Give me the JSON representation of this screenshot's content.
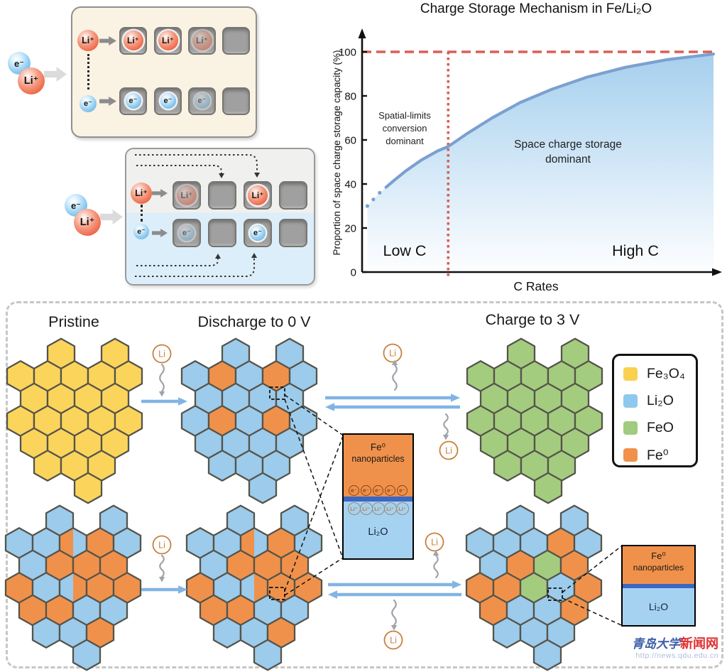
{
  "schematic": {
    "li_ion": "Li⁺",
    "electron": "e⁻",
    "panel1": {
      "li_cells": [
        "full",
        "full",
        "faded",
        "empty"
      ],
      "e_cells": [
        "full",
        "full",
        "faded",
        "empty"
      ]
    },
    "panel2": {
      "li_cells": [
        "faded",
        "empty",
        "full",
        "empty"
      ],
      "e_cells": [
        "faded",
        "empty",
        "full",
        "empty"
      ]
    }
  },
  "chart_data": {
    "type": "area",
    "title": "Charge Storage Mechanism in Fe/Li₂O",
    "xlabel": "C Rates",
    "ylabel": "Proportion of space charge storage capacity (%)",
    "x_range_labels": {
      "low": "Low C",
      "high": "High C"
    },
    "yticks": [
      0,
      20,
      40,
      60,
      80,
      100
    ],
    "ylim": [
      0,
      105
    ],
    "grid": false,
    "series": [
      {
        "name": "proportion of space charge storage",
        "x": [
          0.015,
          0.032,
          0.05,
          0.068,
          0.09,
          0.125,
          0.17,
          0.215,
          0.245,
          0.3,
          0.37,
          0.45,
          0.54,
          0.64,
          0.75,
          0.87,
          1.0
        ],
        "y": [
          30,
          33,
          36,
          38.5,
          41.5,
          46,
          51,
          55,
          57,
          63,
          70,
          77,
          83,
          88.5,
          93,
          96.5,
          99
        ],
        "dotted_prefix_points": 3
      }
    ],
    "reference_lines": [
      {
        "type": "horizontal",
        "value": 100,
        "style": "dashed",
        "color": "#D95F57"
      },
      {
        "type": "vertical",
        "x_fraction": 0.245,
        "style": "dotted",
        "color": "#D95F57"
      }
    ],
    "annotations": [
      {
        "id": "spatial",
        "lines": [
          "Spatial-limits",
          "conversion",
          "dominant"
        ]
      },
      {
        "id": "space-charge",
        "lines": [
          "Space charge storage",
          "dominant"
        ]
      }
    ],
    "colors": {
      "curve": "#7CA0CF",
      "fill_top": "#9ECBEC",
      "fill_mid": "#C8E2F5",
      "fill_bottom": "#FDFEFF"
    }
  },
  "bottom_panel": {
    "labels": {
      "pristine": "Pristine",
      "discharge": "Discharge to 0 V",
      "charge": "Charge to 3 V"
    },
    "li_label": "Li",
    "legend": [
      {
        "label": "Fe₃O₄",
        "color": "#FAD14E"
      },
      {
        "label": "Li₂O",
        "color": "#8FC8EF"
      },
      {
        "label": "FeO",
        "color": "#A1CB7F"
      },
      {
        "label": "Fe⁰",
        "color": "#F0914B"
      }
    ],
    "materials": {
      "Y": "#FBD45C",
      "B": "#9CCBEB",
      "O": "#F0914B",
      "G": "#A4CC7F"
    },
    "clusters": {
      "pristine_top": {
        "cells": [
          [
            "Y",
            "Y"
          ],
          [
            "Y",
            "Y",
            "Y",
            "Y",
            "Y"
          ],
          [
            "Y",
            "Y",
            "Y",
            "Y"
          ],
          [
            "Y",
            "Y",
            "Y",
            "Y",
            "Y"
          ],
          [
            "Y",
            "Y",
            "Y",
            "Y"
          ],
          [
            "Y",
            "Y",
            "Y"
          ],
          [
            "Y"
          ]
        ]
      },
      "discharge_top": {
        "cells": [
          [
            "B",
            "B"
          ],
          [
            "B",
            "O",
            "B",
            "O",
            "B"
          ],
          [
            "B",
            "B",
            "B",
            "B"
          ],
          [
            "B",
            "O",
            "B",
            "O",
            "B"
          ],
          [
            "B",
            "B",
            "B",
            "B"
          ],
          [
            "B",
            "B",
            "B"
          ],
          [
            "B"
          ]
        ]
      },
      "charge_top": {
        "cells": [
          [
            "G",
            "G"
          ],
          [
            "G",
            "G",
            "G",
            "G",
            "G"
          ],
          [
            "G",
            "G",
            "G",
            "G"
          ],
          [
            "G",
            "G",
            "G",
            "G",
            "G"
          ],
          [
            "G",
            "G",
            "G",
            "G"
          ],
          [
            "G",
            "G",
            "G"
          ],
          [
            "G"
          ]
        ]
      },
      "bottom_left": {
        "cells": [
          [
            "B",
            "B"
          ],
          [
            "B",
            "B",
            "O|B",
            "O",
            "B"
          ],
          [
            "B",
            "O",
            "O",
            "O"
          ],
          [
            "O",
            "B",
            "B|O",
            "O",
            "O"
          ],
          [
            "O",
            "O",
            "B",
            "B"
          ],
          [
            "B",
            "B",
            "O"
          ],
          [
            "B"
          ]
        ]
      },
      "bottom_middle": {
        "cells": [
          [
            "B",
            "B"
          ],
          [
            "B",
            "B",
            "O|B",
            "O",
            "B"
          ],
          [
            "B",
            "O",
            "O",
            "O"
          ],
          [
            "O",
            "B",
            "B|O",
            "O",
            "O"
          ],
          [
            "O",
            "O",
            "B",
            "B"
          ],
          [
            "B",
            "B",
            "O"
          ],
          [
            "B"
          ]
        ]
      },
      "bottom_right": {
        "cells": [
          [
            "B",
            "B"
          ],
          [
            "B",
            "B",
            "B",
            "O",
            "B"
          ],
          [
            "B",
            "O",
            "G",
            "O"
          ],
          [
            "O",
            "O",
            "G",
            "B",
            "O"
          ],
          [
            "O",
            "B",
            "B",
            "O"
          ],
          [
            "B",
            "B",
            "B"
          ],
          [
            "B"
          ]
        ]
      }
    },
    "inset_main": {
      "top_label_1": "Fe⁰",
      "top_label_2": "nanoparticles",
      "bottom_label": "Li₂O",
      "electron": "e⁻",
      "li_ion": "Li⁺",
      "electron_count": 5,
      "li_count": 5
    },
    "inset_right": {
      "top_label_1": "Fe⁰",
      "top_label_2": "nanoparticles",
      "bottom_label": "Li₂O"
    }
  },
  "watermark": {
    "site_blue": "青岛大学",
    "site_red": "新闻网",
    "url": "http://news.qdu.edu.cn"
  }
}
